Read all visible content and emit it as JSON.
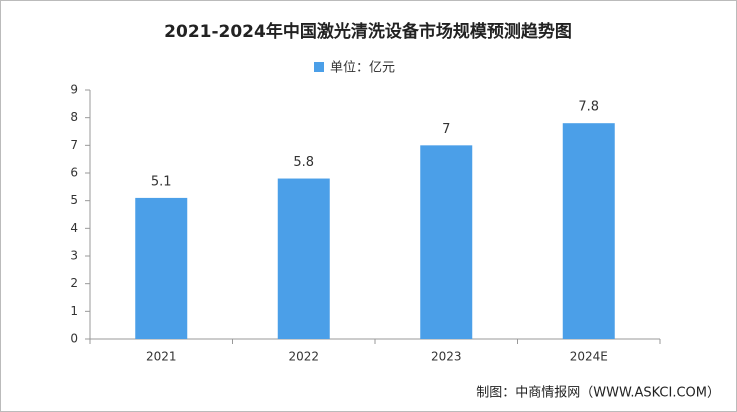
{
  "chart_data": {
    "type": "bar",
    "title": "2021-2024年中国激光清洗设备市场规模预测趋势图",
    "legend": "单位：亿元",
    "categories": [
      "2021",
      "2022",
      "2023",
      "2024E"
    ],
    "values": [
      5.1,
      5.8,
      7,
      7.8
    ],
    "color": "#4b9fe8",
    "ylim": [
      0,
      9
    ],
    "yticks": [
      0,
      1,
      2,
      3,
      4,
      5,
      6,
      7,
      8,
      9
    ],
    "grid": false,
    "source": "制图：中商情报网（WWW.ASKCI.COM）"
  }
}
